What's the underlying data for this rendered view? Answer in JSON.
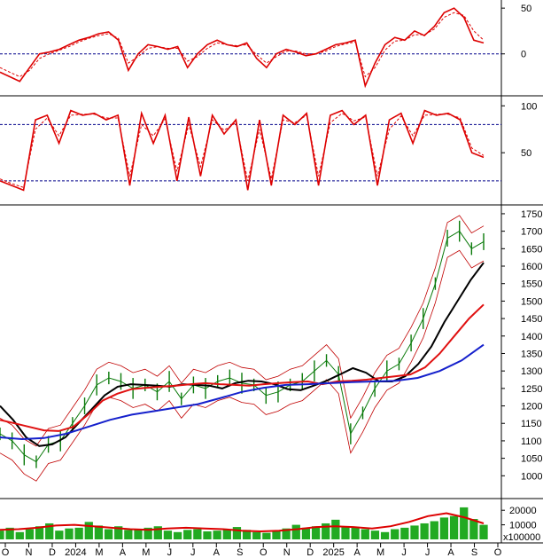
{
  "chart_data": [
    {
      "panel": "momentum-oscillator",
      "type": "line",
      "ylim": [
        -40,
        55
      ],
      "yticks": [
        0,
        50
      ],
      "reference_lines": [
        0
      ],
      "series": [
        {
          "color": "#dd0000",
          "style": "solid",
          "values": [
            -20,
            -25,
            -30,
            -15,
            0,
            2,
            5,
            10,
            15,
            18,
            22,
            24,
            15,
            -18,
            0,
            10,
            8,
            5,
            8,
            -15,
            0,
            10,
            15,
            10,
            8,
            12,
            -5,
            -15,
            0,
            5,
            2,
            -2,
            0,
            5,
            10,
            12,
            15,
            -35,
            -10,
            10,
            18,
            15,
            25,
            20,
            30,
            45,
            50,
            40,
            15,
            12
          ]
        },
        {
          "color": "#dd0000",
          "style": "dashed",
          "values": [
            -15,
            -20,
            -25,
            -18,
            -5,
            0,
            4,
            8,
            13,
            17,
            20,
            22,
            17,
            -10,
            -3,
            6,
            8,
            6,
            6,
            -8,
            -3,
            6,
            12,
            10,
            9,
            10,
            -1,
            -10,
            -3,
            3,
            3,
            0,
            0,
            3,
            8,
            11,
            13,
            -25,
            -15,
            4,
            14,
            15,
            21,
            21,
            27,
            40,
            45,
            42,
            25,
            15
          ]
        }
      ],
      "colors": {
        "grid": "#00008b"
      }
    },
    {
      "panel": "stochastic-oscillator",
      "type": "line",
      "ylim": [
        0,
        105
      ],
      "yticks": [
        50,
        100
      ],
      "reference_lines": [
        80,
        20
      ],
      "series": [
        {
          "color": "#dd0000",
          "style": "solid",
          "values": [
            20,
            15,
            10,
            85,
            90,
            60,
            95,
            90,
            92,
            85,
            90,
            15,
            92,
            60,
            90,
            20,
            88,
            25,
            90,
            70,
            85,
            10,
            85,
            15,
            90,
            80,
            92,
            15,
            90,
            95,
            80,
            90,
            15,
            85,
            92,
            60,
            95,
            90,
            92,
            85,
            50,
            45
          ]
        },
        {
          "color": "#dd0000",
          "style": "dashed",
          "values": [
            22,
            17,
            13,
            75,
            87,
            68,
            90,
            91,
            91,
            87,
            87,
            25,
            80,
            68,
            86,
            30,
            80,
            35,
            85,
            74,
            82,
            20,
            75,
            22,
            85,
            82,
            90,
            25,
            82,
            92,
            84,
            88,
            25,
            75,
            89,
            68,
            90,
            91,
            91,
            87,
            55,
            47
          ]
        }
      ],
      "colors": {
        "grid": "#00008b"
      }
    },
    {
      "panel": "price",
      "type": "line",
      "x_ticks": [
        "O",
        "N",
        "D",
        "2024",
        "M",
        "A",
        "M",
        "J",
        "J",
        "A",
        "S",
        "O",
        "N",
        "D",
        "2025",
        "A",
        "M",
        "J",
        "J",
        "A",
        "S",
        "O"
      ],
      "ylim": [
        950,
        1760
      ],
      "yticks": [
        1000,
        1050,
        1100,
        1150,
        1200,
        1250,
        1300,
        1350,
        1400,
        1450,
        1500,
        1550,
        1600,
        1650,
        1700,
        1750
      ],
      "series": [
        {
          "name": "",
          "color": "#0a7a0a",
          "style": "price",
          "values": [
            1120,
            1100,
            1060,
            1040,
            1090,
            1100,
            1150,
            1200,
            1260,
            1280,
            1270,
            1250,
            1260,
            1240,
            1270,
            1220,
            1260,
            1250,
            1270,
            1280,
            1265,
            1260,
            1230,
            1240,
            1260,
            1270,
            1300,
            1330,
            1290,
            1120,
            1180,
            1250,
            1300,
            1320,
            1380,
            1450,
            1550,
            1680,
            1700,
            1650,
            1670
          ]
        },
        {
          "name": "",
          "color": "#000000",
          "style": "ma-short",
          "values": [
            1200,
            1160,
            1110,
            1085,
            1090,
            1110,
            1150,
            1190,
            1230,
            1255,
            1262,
            1260,
            1258,
            1255,
            1262,
            1260,
            1258,
            1250,
            1265,
            1272,
            1270,
            1262,
            1248,
            1245,
            1258,
            1272,
            1290,
            1308,
            1295,
            1270,
            1270,
            1285,
            1320,
            1370,
            1440,
            1500,
            1560,
            1610
          ]
        },
        {
          "name": "",
          "color": "#e01010",
          "style": "ma-mid",
          "values": [
            1160,
            1150,
            1140,
            1130,
            1128,
            1140,
            1175,
            1215,
            1235,
            1248,
            1252,
            1255,
            1258,
            1262,
            1265,
            1262,
            1260,
            1258,
            1262,
            1265,
            1268,
            1270,
            1262,
            1270,
            1272,
            1275,
            1280,
            1285,
            1290,
            1310,
            1350,
            1400,
            1450,
            1490
          ]
        },
        {
          "name": "",
          "color": "#1520cc",
          "style": "ma-long",
          "values": [
            1110,
            1105,
            1108,
            1120,
            1140,
            1160,
            1175,
            1185,
            1195,
            1205,
            1222,
            1240,
            1252,
            1260,
            1262,
            1265,
            1268,
            1270,
            1272,
            1280,
            1300,
            1330,
            1375
          ]
        }
      ],
      "bands": {
        "color": "#c00000"
      }
    },
    {
      "panel": "volume",
      "type": "bar",
      "ylim": [
        0,
        25000
      ],
      "yticks": [
        10000,
        20000
      ],
      "scale_label": "x100000",
      "colors": {
        "bar": "#22aa22",
        "ma": "#dd0000"
      },
      "bars": [
        6000,
        8000,
        5000,
        7000,
        9000,
        11000,
        6000,
        7500,
        8000,
        12000,
        9500,
        7000,
        9000,
        6500,
        7000,
        8000,
        9000,
        6000,
        5000,
        6500,
        7000,
        5500,
        6000,
        7000,
        8500,
        6500,
        5000,
        4500,
        6000,
        7500,
        10000,
        8000,
        9000,
        11000,
        13500,
        9000,
        8000,
        7000,
        6000,
        5000,
        7000,
        8000,
        9500,
        11000,
        12500,
        15000,
        16000,
        22000,
        14000,
        10000
      ],
      "ma": [
        6500,
        7000,
        8000,
        9500,
        10000,
        9000,
        8000,
        7000,
        6500,
        7500,
        8000,
        7500,
        7000,
        6000,
        5500,
        6000,
        7000,
        8500,
        9000,
        8500,
        7500,
        9000,
        12000,
        16000,
        18000,
        15000,
        11000
      ]
    }
  ]
}
